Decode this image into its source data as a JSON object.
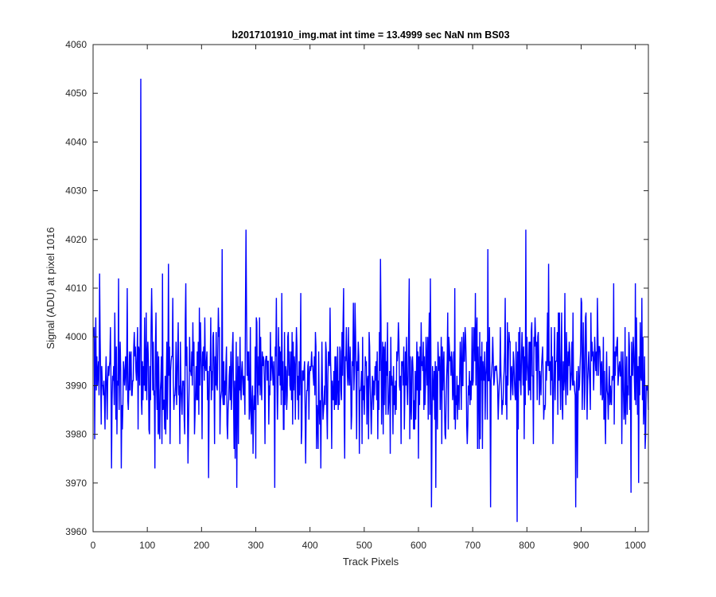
{
  "chart_data": {
    "type": "line",
    "title": "b2017101910_img.mat int time = 13.4999 sec  NaN nm BS03",
    "xlabel": "Track Pixels",
    "ylabel": "Signal (ADU) at pixel 1016",
    "xlim": [
      0,
      1024
    ],
    "ylim": [
      3960,
      4060
    ],
    "x_ticks": [
      0,
      100,
      200,
      300,
      400,
      500,
      600,
      700,
      800,
      900,
      1000
    ],
    "y_ticks": [
      3960,
      3970,
      3980,
      3990,
      4000,
      4010,
      4020,
      4030,
      4040,
      4050,
      4060
    ],
    "grid": false,
    "series": [
      {
        "color": "#0000ff",
        "x_start": 1,
        "x_step": 1,
        "baseline": 3992,
        "spread": 6,
        "peaks": [
          {
            "x": 1,
            "y": 4000
          },
          {
            "x": 3,
            "y": 3979
          },
          {
            "x": 5,
            "y": 4004
          },
          {
            "x": 8,
            "y": 3990
          },
          {
            "x": 12,
            "y": 4013
          },
          {
            "x": 15,
            "y": 3982
          },
          {
            "x": 26,
            "y": 3983
          },
          {
            "x": 32,
            "y": 4002
          },
          {
            "x": 34,
            "y": 3973
          },
          {
            "x": 44,
            "y": 3980
          },
          {
            "x": 47,
            "y": 4012
          },
          {
            "x": 52,
            "y": 3973
          },
          {
            "x": 63,
            "y": 4010
          },
          {
            "x": 72,
            "y": 3988
          },
          {
            "x": 86,
            "y": 3990
          },
          {
            "x": 88,
            "y": 4053
          },
          {
            "x": 90,
            "y": 3984
          },
          {
            "x": 95,
            "y": 4004
          },
          {
            "x": 103,
            "y": 3981
          },
          {
            "x": 108,
            "y": 4010
          },
          {
            "x": 114,
            "y": 3973
          },
          {
            "x": 128,
            "y": 4013
          },
          {
            "x": 134,
            "y": 3980
          },
          {
            "x": 139,
            "y": 4015
          },
          {
            "x": 142,
            "y": 3978
          },
          {
            "x": 152,
            "y": 3990
          },
          {
            "x": 160,
            "y": 3978
          },
          {
            "x": 171,
            "y": 4011
          },
          {
            "x": 175,
            "y": 3974
          },
          {
            "x": 188,
            "y": 3984
          },
          {
            "x": 201,
            "y": 3979
          },
          {
            "x": 213,
            "y": 3971
          },
          {
            "x": 238,
            "y": 4018
          },
          {
            "x": 248,
            "y": 3979
          },
          {
            "x": 262,
            "y": 3975
          },
          {
            "x": 265,
            "y": 3969
          },
          {
            "x": 279,
            "y": 3989
          },
          {
            "x": 282,
            "y": 4022
          },
          {
            "x": 295,
            "y": 3976
          },
          {
            "x": 300,
            "y": 3975
          },
          {
            "x": 335,
            "y": 3969
          },
          {
            "x": 338,
            "y": 4008
          },
          {
            "x": 348,
            "y": 4009
          },
          {
            "x": 383,
            "y": 4009
          },
          {
            "x": 384,
            "y": 3978
          },
          {
            "x": 392,
            "y": 3974
          },
          {
            "x": 415,
            "y": 3977
          },
          {
            "x": 420,
            "y": 3973
          },
          {
            "x": 432,
            "y": 3979
          },
          {
            "x": 440,
            "y": 3977
          },
          {
            "x": 462,
            "y": 4010
          },
          {
            "x": 464,
            "y": 3975
          },
          {
            "x": 480,
            "y": 4007
          },
          {
            "x": 486,
            "y": 3979
          },
          {
            "x": 496,
            "y": 3978
          },
          {
            "x": 512,
            "y": 3986
          },
          {
            "x": 530,
            "y": 4016
          },
          {
            "x": 535,
            "y": 3980
          },
          {
            "x": 548,
            "y": 3976
          },
          {
            "x": 568,
            "y": 3978
          },
          {
            "x": 583,
            "y": 4012
          },
          {
            "x": 600,
            "y": 3975
          },
          {
            "x": 622,
            "y": 4012
          },
          {
            "x": 624,
            "y": 3965
          },
          {
            "x": 632,
            "y": 3969
          },
          {
            "x": 650,
            "y": 3979
          },
          {
            "x": 667,
            "y": 4010
          },
          {
            "x": 690,
            "y": 3978
          },
          {
            "x": 705,
            "y": 4009
          },
          {
            "x": 712,
            "y": 3977
          },
          {
            "x": 728,
            "y": 4018
          },
          {
            "x": 733,
            "y": 3965
          },
          {
            "x": 760,
            "y": 4008
          },
          {
            "x": 782,
            "y": 3962
          },
          {
            "x": 795,
            "y": 3979
          },
          {
            "x": 798,
            "y": 4022
          },
          {
            "x": 812,
            "y": 3978
          },
          {
            "x": 840,
            "y": 4015
          },
          {
            "x": 848,
            "y": 3978
          },
          {
            "x": 870,
            "y": 4009
          },
          {
            "x": 890,
            "y": 3965
          },
          {
            "x": 893,
            "y": 3971
          },
          {
            "x": 900,
            "y": 4008
          },
          {
            "x": 930,
            "y": 4008
          },
          {
            "x": 945,
            "y": 3978
          },
          {
            "x": 960,
            "y": 4011
          },
          {
            "x": 975,
            "y": 3978
          },
          {
            "x": 992,
            "y": 3968
          },
          {
            "x": 1000,
            "y": 4011
          },
          {
            "x": 1006,
            "y": 3970
          },
          {
            "x": 1012,
            "y": 4008
          },
          {
            "x": 1018,
            "y": 3977
          },
          {
            "x": 1022,
            "y": 3990
          }
        ]
      }
    ]
  }
}
